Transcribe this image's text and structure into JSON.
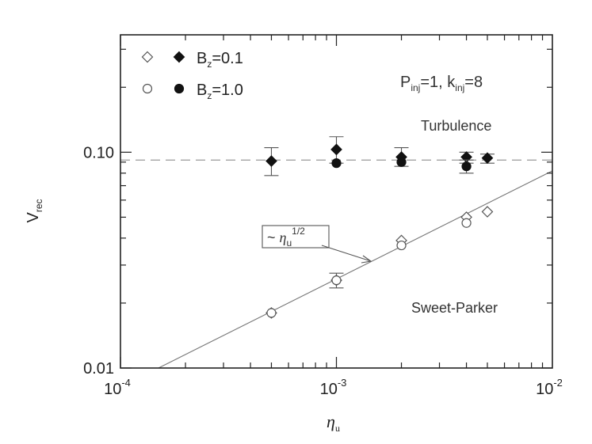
{
  "chart_data": {
    "type": "scatter",
    "x_scale": "log",
    "y_scale": "log",
    "xlim": [
      0.0001,
      0.01
    ],
    "ylim": [
      0.01,
      0.35
    ],
    "x_ticks": [
      {
        "value": 0.0001,
        "base": "10",
        "exp": "-4"
      },
      {
        "value": 0.001,
        "base": "10",
        "exp": "-3"
      },
      {
        "value": 0.01,
        "base": "10",
        "exp": "-2"
      }
    ],
    "y_ticks": [
      {
        "value": 0.01,
        "label": "0.01"
      },
      {
        "value": 0.1,
        "label": "0.10"
      }
    ],
    "xlabel": {
      "main": "η",
      "sub": "u"
    },
    "ylabel": {
      "main": "V",
      "sub": "rec"
    },
    "legend": {
      "placement": "top-left",
      "rows": [
        {
          "prefix": "B",
          "sub": "z",
          "suffix": "=0.1",
          "markers": [
            "open-diamond",
            "filled-diamond"
          ]
        },
        {
          "prefix": "B",
          "sub": "z",
          "suffix": "=1.0",
          "markers": [
            "open-circle",
            "filled-circle"
          ]
        }
      ]
    },
    "params_text": {
      "p": "P",
      "p_sub": "inj",
      "p_val": "=1,  ",
      "k": "k",
      "k_sub": "inj",
      "k_val": "=8"
    },
    "annotations": {
      "turbulence": "Turbulence",
      "sweet_parker": "Sweet-Parker",
      "scaling": {
        "prefix": "~ ",
        "sym": "η",
        "sub": "u",
        "sup": "1/2"
      }
    },
    "reference_lines": {
      "horizontal_dashed_y": 0.092,
      "sweet_parker_line": {
        "from": [
          0.00015,
          0.01
        ],
        "to": [
          0.01,
          0.082
        ]
      }
    },
    "series": [
      {
        "name": "Bz=0.1 Turbulence",
        "marker": "filled-diamond",
        "points": [
          {
            "x": 0.0005,
            "y": 0.091,
            "ylo": 0.078,
            "yhi": 0.105
          },
          {
            "x": 0.001,
            "y": 0.103,
            "ylo": 0.089,
            "yhi": 0.118
          },
          {
            "x": 0.002,
            "y": 0.095,
            "ylo": 0.086,
            "yhi": 0.105
          },
          {
            "x": 0.004,
            "y": 0.095,
            "ylo": 0.089,
            "yhi": 0.1
          },
          {
            "x": 0.005,
            "y": 0.094,
            "ylo": 0.089,
            "yhi": 0.098
          }
        ]
      },
      {
        "name": "Bz=1.0 Turbulence",
        "marker": "filled-circle",
        "points": [
          {
            "x": 0.001,
            "y": 0.089
          },
          {
            "x": 0.002,
            "y": 0.09
          },
          {
            "x": 0.004,
            "y": 0.086,
            "ylo": 0.08,
            "yhi": 0.092
          }
        ]
      },
      {
        "name": "Bz=0.1 Sweet-Parker",
        "marker": "open-diamond",
        "points": [
          {
            "x": 0.0005,
            "y": 0.018
          },
          {
            "x": 0.001,
            "y": 0.0255,
            "ylo": 0.0235,
            "yhi": 0.0275
          },
          {
            "x": 0.002,
            "y": 0.039
          },
          {
            "x": 0.004,
            "y": 0.05
          },
          {
            "x": 0.005,
            "y": 0.053
          }
        ]
      },
      {
        "name": "Bz=1.0 Sweet-Parker",
        "marker": "open-circle",
        "points": [
          {
            "x": 0.0005,
            "y": 0.018
          },
          {
            "x": 0.001,
            "y": 0.0255
          },
          {
            "x": 0.002,
            "y": 0.037
          },
          {
            "x": 0.004,
            "y": 0.047
          }
        ]
      }
    ]
  }
}
